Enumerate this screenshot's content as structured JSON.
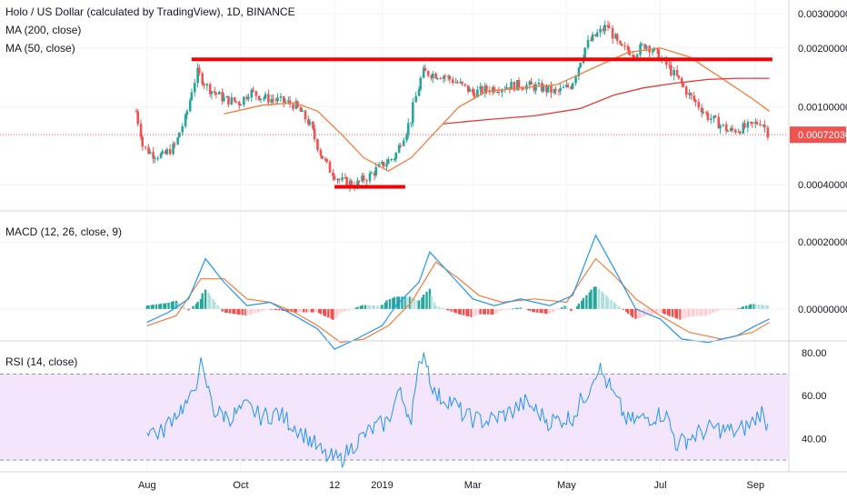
{
  "colors": {
    "up": "#26a69a",
    "down": "#ef5350",
    "ma200": "#e53935",
    "ma50": "#f57c3b",
    "macd_line": "#2196f3",
    "signal_line": "#f57c3b",
    "rsi_line": "#2196f3",
    "rsi_band": "#f3e5fb",
    "annotation": "#ff0000",
    "price_tag_bg": "#ef5350",
    "grid": "#f0f3fa",
    "axis_text": "#131722"
  },
  "legend": {
    "price": "Holo / US Dollar (calculated by TradingView), 1D, BINANCE",
    "ma200": "MA (200, close)",
    "ma50": "MA (50, close)",
    "macd": "MACD (12, 26, close, 9)",
    "rsi": "RSI (14, close)"
  },
  "x_axis": {
    "labels": [
      "Aug",
      "Oct",
      "12",
      "2019",
      "Mar",
      "May",
      "Jul",
      "Sep"
    ],
    "label_dates": [
      "2018-08-01",
      "2018-10-01",
      "2018-12-01",
      "2019-01-01",
      "2019-03-01",
      "2019-05-01",
      "2019-07-01",
      "2019-09-01"
    ]
  },
  "chart_data": [
    {
      "type": "candlestick",
      "title": "Holo / US Dollar (calculated by TradingView), 1D, BINANCE",
      "y_scale": "log",
      "ylim": [
        0.0003,
        0.0033
      ],
      "y_ticks": [
        "0.00300000",
        "0.00200000",
        "0.00100000",
        "0.00040000"
      ],
      "y_tick_values": [
        0.003,
        0.002,
        0.001,
        0.0004
      ],
      "last_price_label": "0.00072030",
      "last_price": 0.0007203,
      "x_range": [
        "2018-07-25",
        "2019-09-15"
      ],
      "close_series": [
        [
          "2018-07-25",
          0.00095
        ],
        [
          "2018-07-30",
          0.00062
        ],
        [
          "2018-08-04",
          0.00058
        ],
        [
          "2018-08-12",
          0.00056
        ],
        [
          "2018-08-20",
          0.00064
        ],
        [
          "2018-08-27",
          0.0009
        ],
        [
          "2018-09-03",
          0.0015
        ],
        [
          "2018-09-10",
          0.00125
        ],
        [
          "2018-09-20",
          0.0011
        ],
        [
          "2018-10-01",
          0.00105
        ],
        [
          "2018-10-07",
          0.0012
        ],
        [
          "2018-10-15",
          0.00112
        ],
        [
          "2018-10-25",
          0.00108
        ],
        [
          "2018-11-05",
          0.00103
        ],
        [
          "2018-11-15",
          0.00082
        ],
        [
          "2018-11-22",
          0.00058
        ],
        [
          "2018-11-28",
          0.00048
        ],
        [
          "2018-12-05",
          0.00042
        ],
        [
          "2018-12-15",
          0.0004
        ],
        [
          "2018-12-25",
          0.00045
        ],
        [
          "2019-01-01",
          0.0005
        ],
        [
          "2019-01-10",
          0.00056
        ],
        [
          "2019-01-20",
          0.00085
        ],
        [
          "2019-01-28",
          0.0015
        ],
        [
          "2019-02-10",
          0.00145
        ],
        [
          "2019-02-20",
          0.00132
        ],
        [
          "2019-03-01",
          0.00118
        ],
        [
          "2019-03-15",
          0.00125
        ],
        [
          "2019-04-01",
          0.0013
        ],
        [
          "2019-04-15",
          0.00125
        ],
        [
          "2019-04-25",
          0.00118
        ],
        [
          "2019-05-05",
          0.0013
        ],
        [
          "2019-05-15",
          0.0021
        ],
        [
          "2019-05-28",
          0.0026
        ],
        [
          "2019-06-05",
          0.002
        ],
        [
          "2019-06-15",
          0.0019
        ],
        [
          "2019-06-22",
          0.0021
        ],
        [
          "2019-07-01",
          0.0018
        ],
        [
          "2019-07-10",
          0.00148
        ],
        [
          "2019-07-20",
          0.00115
        ],
        [
          "2019-08-01",
          0.0009
        ],
        [
          "2019-08-15",
          0.00075
        ],
        [
          "2019-08-30",
          0.0008
        ],
        [
          "2019-09-05",
          0.00085
        ],
        [
          "2019-09-10",
          0.00072
        ]
      ],
      "ma50_series": [
        [
          "2018-09-20",
          0.00092
        ],
        [
          "2018-10-15",
          0.00102
        ],
        [
          "2018-11-05",
          0.00105
        ],
        [
          "2018-11-20",
          0.00095
        ],
        [
          "2018-12-05",
          0.00073
        ],
        [
          "2018-12-20",
          0.00055
        ],
        [
          "2019-01-05",
          0.00047
        ],
        [
          "2019-01-20",
          0.00055
        ],
        [
          "2019-02-05",
          0.00075
        ],
        [
          "2019-02-20",
          0.001
        ],
        [
          "2019-03-10",
          0.0012
        ],
        [
          "2019-04-01",
          0.00125
        ],
        [
          "2019-04-25",
          0.0013
        ],
        [
          "2019-05-20",
          0.0016
        ],
        [
          "2019-06-10",
          0.0019
        ],
        [
          "2019-07-01",
          0.002
        ],
        [
          "2019-07-20",
          0.0018
        ],
        [
          "2019-08-10",
          0.0014
        ],
        [
          "2019-08-30",
          0.0011
        ],
        [
          "2019-09-10",
          0.00095
        ]
      ],
      "ma200_series": [
        [
          "2019-02-10",
          0.00082
        ],
        [
          "2019-03-10",
          0.00086
        ],
        [
          "2019-04-10",
          0.0009
        ],
        [
          "2019-05-10",
          0.00098
        ],
        [
          "2019-06-01",
          0.00115
        ],
        [
          "2019-06-20",
          0.00125
        ],
        [
          "2019-07-10",
          0.00132
        ],
        [
          "2019-08-01",
          0.00138
        ],
        [
          "2019-08-20",
          0.0014
        ],
        [
          "2019-09-10",
          0.0014
        ]
      ],
      "annotations": [
        {
          "type": "horizontal-segment",
          "from": "2018-08-30",
          "to": "2019-09-12",
          "price": 0.00175
        },
        {
          "type": "horizontal-segment",
          "from": "2018-12-01",
          "to": "2019-01-16",
          "price": 0.00039
        }
      ]
    },
    {
      "type": "line",
      "title": "MACD (12, 26, close, 9)",
      "ylim": [
        -9e-05,
        0.00029
      ],
      "y_ticks": [
        "0.00020000",
        "0.00000000"
      ],
      "y_tick_values": [
        0.0002,
        0
      ],
      "macd_series": [
        [
          "2018-08-01",
          -4e-05
        ],
        [
          "2018-08-15",
          -1e-05
        ],
        [
          "2018-08-28",
          3e-05
        ],
        [
          "2018-09-08",
          0.00015
        ],
        [
          "2018-09-20",
          8e-05
        ],
        [
          "2018-10-05",
          1e-05
        ],
        [
          "2018-10-20",
          2e-05
        ],
        [
          "2018-11-05",
          -2e-05
        ],
        [
          "2018-11-20",
          -6e-05
        ],
        [
          "2018-12-01",
          -0.00012
        ],
        [
          "2018-12-15",
          -9e-05
        ],
        [
          "2019-01-01",
          -5e-05
        ],
        [
          "2019-01-10",
          1e-05
        ],
        [
          "2019-01-25",
          8e-05
        ],
        [
          "2019-02-01",
          0.00017
        ],
        [
          "2019-02-15",
          0.0001
        ],
        [
          "2019-03-01",
          3e-05
        ],
        [
          "2019-03-15",
          1e-05
        ],
        [
          "2019-04-01",
          3e-05
        ],
        [
          "2019-04-20",
          1e-05
        ],
        [
          "2019-05-05",
          4e-05
        ],
        [
          "2019-05-20",
          0.00022
        ],
        [
          "2019-06-01",
          0.00012
        ],
        [
          "2019-06-15",
          0.0
        ],
        [
          "2019-07-01",
          -3e-05
        ],
        [
          "2019-07-15",
          -9e-05
        ],
        [
          "2019-08-01",
          -0.0001
        ],
        [
          "2019-08-20",
          -8e-05
        ],
        [
          "2019-09-01",
          -5e-05
        ],
        [
          "2019-09-10",
          -3e-05
        ]
      ],
      "signal_series": [
        [
          "2018-08-01",
          -5e-05
        ],
        [
          "2018-08-20",
          -2e-05
        ],
        [
          "2018-09-05",
          9e-05
        ],
        [
          "2018-09-20",
          9e-05
        ],
        [
          "2018-10-05",
          3e-05
        ],
        [
          "2018-10-20",
          2e-05
        ],
        [
          "2018-11-05",
          -1e-05
        ],
        [
          "2018-11-20",
          -5e-05
        ],
        [
          "2018-12-05",
          -0.0001
        ],
        [
          "2018-12-20",
          -9e-05
        ],
        [
          "2019-01-05",
          -5e-05
        ],
        [
          "2019-01-20",
          2e-05
        ],
        [
          "2019-02-05",
          0.00014
        ],
        [
          "2019-02-20",
          9e-05
        ],
        [
          "2019-03-05",
          4e-05
        ],
        [
          "2019-03-20",
          2e-05
        ],
        [
          "2019-04-10",
          3e-05
        ],
        [
          "2019-05-01",
          2e-05
        ],
        [
          "2019-05-20",
          0.00015
        ],
        [
          "2019-06-01",
          0.0001
        ],
        [
          "2019-06-15",
          3e-05
        ],
        [
          "2019-07-01",
          -2e-05
        ],
        [
          "2019-07-20",
          -7e-05
        ],
        [
          "2019-08-10",
          -9e-05
        ],
        [
          "2019-08-30",
          -7e-05
        ],
        [
          "2019-09-10",
          -4e-05
        ]
      ]
    },
    {
      "type": "line",
      "title": "RSI (14, close)",
      "ylim": [
        25,
        85
      ],
      "y_ticks": [
        "80.00",
        "60.00",
        "40.00"
      ],
      "y_tick_values": [
        80,
        60,
        40
      ],
      "band": [
        30,
        70
      ],
      "rsi_series": [
        [
          "2018-08-01",
          45
        ],
        [
          "2018-08-10",
          42
        ],
        [
          "2018-08-20",
          52
        ],
        [
          "2018-08-30",
          58
        ],
        [
          "2018-09-05",
          74
        ],
        [
          "2018-09-15",
          52
        ],
        [
          "2018-09-25",
          50
        ],
        [
          "2018-10-05",
          55
        ],
        [
          "2018-10-15",
          50
        ],
        [
          "2018-10-25",
          52
        ],
        [
          "2018-11-05",
          46
        ],
        [
          "2018-11-15",
          40
        ],
        [
          "2018-11-25",
          32
        ],
        [
          "2018-12-05",
          30
        ],
        [
          "2018-12-15",
          38
        ],
        [
          "2018-12-25",
          44
        ],
        [
          "2019-01-05",
          48
        ],
        [
          "2019-01-12",
          62
        ],
        [
          "2019-01-20",
          50
        ],
        [
          "2019-01-28",
          82
        ],
        [
          "2019-02-05",
          60
        ],
        [
          "2019-02-15",
          58
        ],
        [
          "2019-02-25",
          50
        ],
        [
          "2019-03-10",
          48
        ],
        [
          "2019-03-25",
          52
        ],
        [
          "2019-04-05",
          57
        ],
        [
          "2019-04-20",
          48
        ],
        [
          "2019-05-05",
          50
        ],
        [
          "2019-05-15",
          62
        ],
        [
          "2019-05-22",
          74
        ],
        [
          "2019-06-01",
          60
        ],
        [
          "2019-06-10",
          48
        ],
        [
          "2019-06-25",
          50
        ],
        [
          "2019-07-05",
          52
        ],
        [
          "2019-07-12",
          37
        ],
        [
          "2019-07-25",
          42
        ],
        [
          "2019-08-05",
          45
        ],
        [
          "2019-08-20",
          43
        ],
        [
          "2019-08-30",
          47
        ],
        [
          "2019-09-05",
          53
        ],
        [
          "2019-09-10",
          45
        ]
      ]
    }
  ]
}
